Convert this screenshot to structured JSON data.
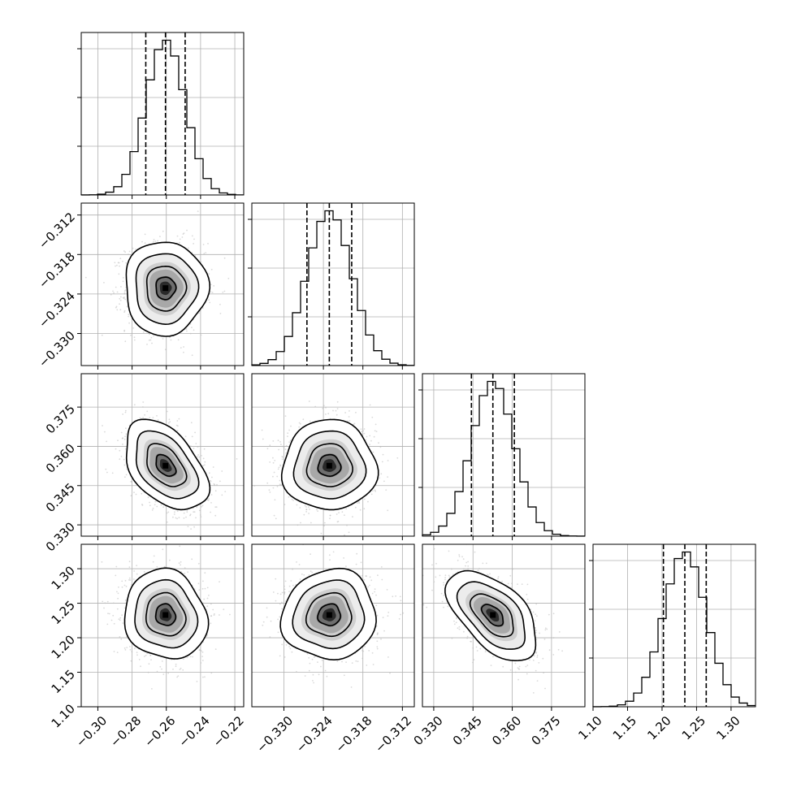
{
  "chart_data": {
    "type": "corner",
    "grid": true,
    "parameters": [
      {
        "mean": -0.2605,
        "sd": 0.0115,
        "q16": -0.272,
        "q50": -0.2605,
        "q84": -0.249,
        "range": [
          -0.3097,
          -0.2148
        ],
        "ticks": [
          {
            "v": -0.3,
            "label": "−0.30"
          },
          {
            "v": -0.28,
            "label": "−0.28"
          },
          {
            "v": -0.26,
            "label": "−0.26"
          },
          {
            "v": -0.24,
            "label": "−0.24"
          },
          {
            "v": -0.22,
            "label": "−0.22"
          }
        ]
      },
      {
        "mean": -0.3231,
        "sd": 0.0034,
        "q16": -0.3265,
        "q50": -0.3231,
        "q84": -0.3197,
        "range": [
          -0.33487,
          -0.31019
        ],
        "ticks": [
          {
            "v": -0.33,
            "label": "−0.330"
          },
          {
            "v": -0.324,
            "label": "−0.324"
          },
          {
            "v": -0.318,
            "label": "−0.318"
          },
          {
            "v": -0.312,
            "label": "−0.312"
          }
        ]
      },
      {
        "mean": 0.3526,
        "sd": 0.0082,
        "q16": 0.3444,
        "q50": 0.3526,
        "q84": 0.3608,
        "range": [
          0.32568,
          0.38776
        ],
        "ticks": [
          {
            "v": 0.33,
            "label": "0.330"
          },
          {
            "v": 0.345,
            "label": "0.345"
          },
          {
            "v": 0.36,
            "label": "0.360"
          },
          {
            "v": 0.375,
            "label": "0.375"
          }
        ]
      },
      {
        "mean": 1.233,
        "sd": 0.031,
        "q16": 1.202,
        "q50": 1.233,
        "q84": 1.264,
        "range": [
          1.1,
          1.3354
        ],
        "ticks": [
          {
            "v": 1.1,
            "label": "1.10"
          },
          {
            "v": 1.15,
            "label": "1.15"
          },
          {
            "v": 1.2,
            "label": "1.20"
          },
          {
            "v": 1.25,
            "label": "1.25"
          },
          {
            "v": 1.3,
            "label": "1.30"
          }
        ]
      }
    ],
    "correlations": [
      {
        "i": 1,
        "j": 0,
        "r": 0.0
      },
      {
        "i": 2,
        "j": 0,
        "r": -0.45
      },
      {
        "i": 2,
        "j": 1,
        "r": 0.0
      },
      {
        "i": 3,
        "j": 0,
        "r": -0.1
      },
      {
        "i": 3,
        "j": 1,
        "r": 0.05
      },
      {
        "i": 3,
        "j": 2,
        "r": -0.55
      }
    ],
    "histogram_bins": 20,
    "histogram_style": "step",
    "quantile_lines": "dashed",
    "contour_levels_sigma": [
      0.5,
      1.0,
      1.5,
      2.0
    ],
    "scatter_color": "#bbbbbb",
    "density_colormap": [
      "#ffffff",
      "#000000"
    ],
    "colors": {
      "line": "#000000",
      "grid": "#b0b0b0",
      "background": "#ffffff"
    }
  }
}
